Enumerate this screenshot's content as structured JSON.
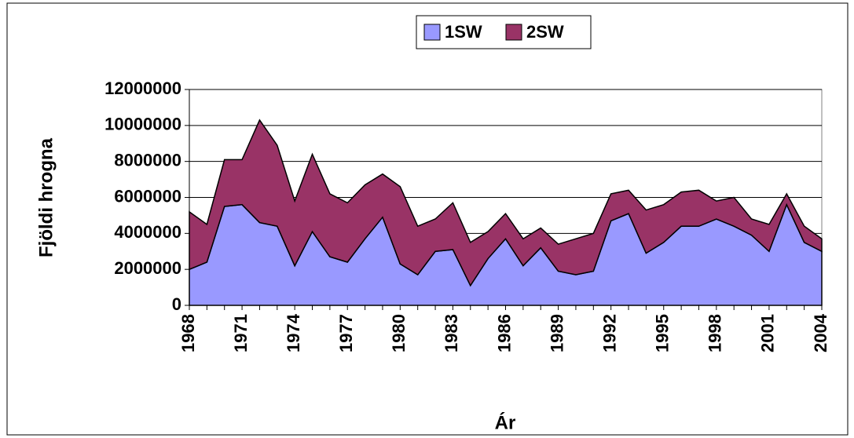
{
  "chart_data": {
    "type": "stacked_area",
    "categories": [
      "1968",
      null,
      null,
      "1971",
      null,
      null,
      "1974",
      null,
      null,
      "1977",
      null,
      null,
      "1980",
      null,
      null,
      "1983",
      null,
      null,
      "1986",
      null,
      null,
      "1989",
      null,
      null,
      "1992",
      null,
      null,
      "1995",
      null,
      null,
      "1998",
      null,
      null,
      "2001",
      null,
      null,
      "2004"
    ],
    "series": [
      {
        "name": "1SW",
        "color": "#9999ff",
        "values": [
          2000000,
          2400000,
          5500000,
          5600000,
          4600000,
          4400000,
          2200000,
          4100000,
          2700000,
          2400000,
          3700000,
          4900000,
          2300000,
          1700000,
          3000000,
          3100000,
          1100000,
          2600000,
          3700000,
          2200000,
          3200000,
          1900000,
          1700000,
          1900000,
          4700000,
          5100000,
          2900000,
          3500000,
          4400000,
          4400000,
          4800000,
          4400000,
          3900000,
          3000000,
          5600000,
          3500000,
          3000000
        ]
      },
      {
        "name": "2SW",
        "color": "#993366",
        "values": [
          3200000,
          2100000,
          2600000,
          2500000,
          5700000,
          4500000,
          3600000,
          4300000,
          3500000,
          3300000,
          3000000,
          2400000,
          4300000,
          2700000,
          1800000,
          2600000,
          2400000,
          1500000,
          1400000,
          1500000,
          1100000,
          1500000,
          2000000,
          2100000,
          1500000,
          1300000,
          2400000,
          2100000,
          1900000,
          2000000,
          1000000,
          1600000,
          900000,
          1500000,
          600000,
          900000,
          700000
        ]
      }
    ],
    "xlabel": "Ár",
    "ylabel": "Fjöldi hrogna",
    "ylim": [
      0,
      12000000
    ],
    "yticks": [
      0,
      2000000,
      4000000,
      6000000,
      8000000,
      10000000,
      12000000
    ],
    "grid": true,
    "legend": "top"
  }
}
